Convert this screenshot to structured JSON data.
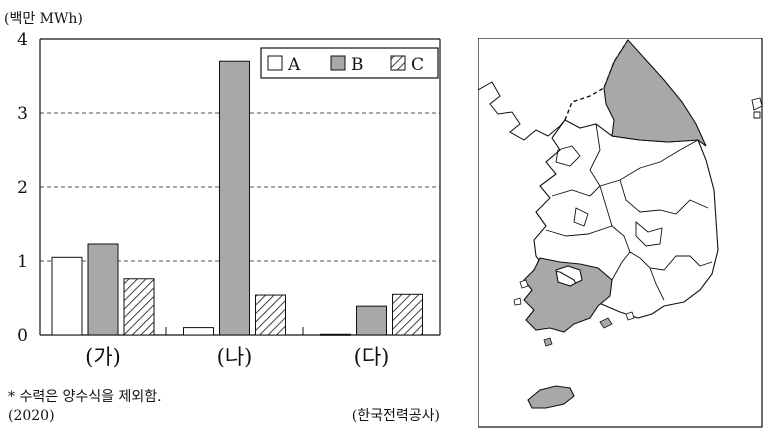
{
  "chart_data": {
    "type": "bar",
    "unit_label": "(백만 MWh)",
    "categories": [
      "(가)",
      "(나)",
      "(다)"
    ],
    "series": [
      {
        "name": "A",
        "values": [
          1.05,
          0.1,
          0.01
        ],
        "fill": "white"
      },
      {
        "name": "B",
        "values": [
          1.23,
          3.7,
          0.39
        ],
        "fill": "gray"
      },
      {
        "name": "C",
        "values": [
          0.76,
          0.54,
          0.55
        ],
        "fill": "hatch"
      }
    ],
    "ylim": [
      0,
      4
    ],
    "yticks": [
      "0",
      "1",
      "2",
      "3",
      "4"
    ],
    "grid": "dashed horizontal",
    "legend_position": "top-right",
    "colors": {
      "gray": "#a8a8a8",
      "stroke": "#111111"
    }
  },
  "footnote": "* 수력은 양수식을 제외함.",
  "year": "(2020)",
  "source": "(한국전력공사)",
  "map": {
    "highlighted_regions": [
      "강원도",
      "전라남도",
      "제주도"
    ]
  }
}
